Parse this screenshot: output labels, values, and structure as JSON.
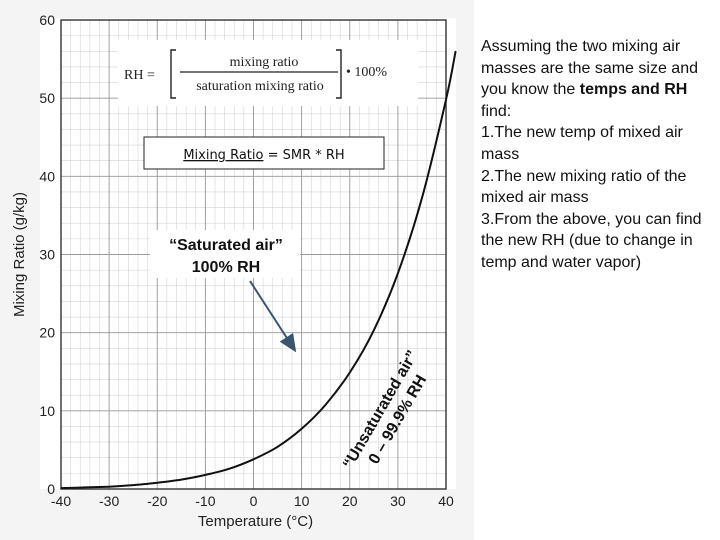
{
  "chart_data": {
    "type": "line",
    "title": "",
    "xlabel": "Temperature (°C)",
    "ylabel": "Mixing Ratio (g/kg)",
    "xlim": [
      -40,
      40
    ],
    "ylim": [
      0,
      60
    ],
    "x_ticks": [
      -40,
      -30,
      -20,
      -10,
      0,
      10,
      20,
      30,
      40
    ],
    "y_ticks": [
      0,
      10,
      20,
      30,
      40,
      50,
      60
    ],
    "grid": true,
    "series": [
      {
        "x": [
          -40,
          -35,
          -30,
          -25,
          -20,
          -15,
          -10,
          -5,
          0,
          5,
          10,
          15,
          20,
          25,
          30,
          35,
          40,
          42
        ],
        "y": [
          0.12,
          0.2,
          0.3,
          0.5,
          0.8,
          1.2,
          1.8,
          2.6,
          3.8,
          5.4,
          7.7,
          10.8,
          14.9,
          20.3,
          27.6,
          37.2,
          49.8,
          56.0
        ]
      }
    ],
    "annotations": {
      "rh_formula_lhs": "RH =",
      "rh_numerator": "mixing ratio",
      "rh_denominator": "saturation mixing ratio",
      "rh_multiplier": "• 100%",
      "mixing_ratio_label": "Mixing Ratio",
      "mixing_ratio_formula": " = SMR * RH",
      "saturated_line1": "“Saturated air”",
      "saturated_line2": "100% RH",
      "unsaturated_line1": "“Unsaturated air”",
      "unsaturated_line2": "0 – 99.9% RH"
    }
  },
  "side_text": {
    "intro": "Assuming the two mixing air masses are the same size and you know the ",
    "intro_bold": "temps and RH",
    "intro_end": " find:",
    "item1": "1.The new temp of mixed air mass",
    "item2": "2.The new mixing ratio of the mixed air mass",
    "item3": "3.From the above, you can find the new RH (due to change in temp and water vapor)"
  }
}
